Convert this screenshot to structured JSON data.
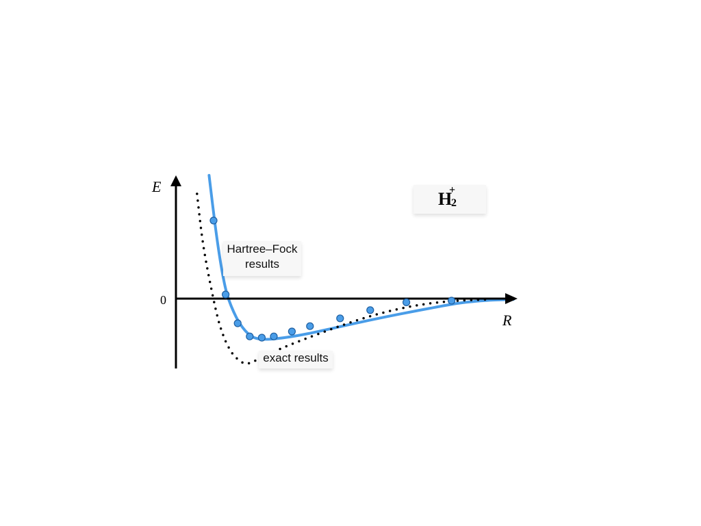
{
  "chart_data": {
    "type": "line",
    "xlabel": "R",
    "ylabel": "E",
    "zero_label": "0",
    "molecule": {
      "symbol": "H",
      "subscript": "2",
      "superscript": "+"
    },
    "grid": false,
    "series": [
      {
        "name": "Hartree–Fock results",
        "style": "solid-with-markers",
        "color": "#4a9de8",
        "curve": [
          [
            0.11,
            3.0
          ],
          [
            0.13,
            1.8
          ],
          [
            0.15,
            0.8
          ],
          [
            0.17,
            0.1
          ],
          [
            0.2,
            -0.45
          ],
          [
            0.23,
            -0.78
          ],
          [
            0.26,
            -0.95
          ],
          [
            0.3,
            -0.99
          ],
          [
            0.36,
            -0.95
          ],
          [
            0.44,
            -0.85
          ],
          [
            0.54,
            -0.69
          ],
          [
            0.64,
            -0.53
          ],
          [
            0.74,
            -0.38
          ],
          [
            0.84,
            -0.24
          ],
          [
            0.94,
            -0.11
          ],
          [
            1.04,
            -0.04
          ],
          [
            1.12,
            -0.02
          ]
        ],
        "points": [
          [
            0.125,
            1.9
          ],
          [
            0.165,
            0.1
          ],
          [
            0.205,
            -0.6
          ],
          [
            0.245,
            -0.92
          ],
          [
            0.285,
            -0.95
          ],
          [
            0.325,
            -0.92
          ],
          [
            0.385,
            -0.8
          ],
          [
            0.445,
            -0.67
          ],
          [
            0.545,
            -0.48
          ],
          [
            0.645,
            -0.28
          ],
          [
            0.765,
            -0.09
          ],
          [
            0.915,
            -0.05
          ]
        ]
      },
      {
        "name": "exact results",
        "style": "dotted",
        "color": "#000000",
        "curve": [
          [
            0.07,
            2.55
          ],
          [
            0.085,
            1.6
          ],
          [
            0.1,
            0.9
          ],
          [
            0.12,
            0.15
          ],
          [
            0.14,
            -0.5
          ],
          [
            0.16,
            -0.95
          ],
          [
            0.18,
            -1.25
          ],
          [
            0.2,
            -1.44
          ],
          [
            0.23,
            -1.58
          ],
          [
            0.26,
            -1.52
          ],
          [
            0.3,
            -1.38
          ],
          [
            0.36,
            -1.18
          ],
          [
            0.44,
            -0.95
          ],
          [
            0.54,
            -0.68
          ],
          [
            0.64,
            -0.44
          ],
          [
            0.74,
            -0.25
          ],
          [
            0.84,
            -0.12
          ],
          [
            0.94,
            -0.05
          ],
          [
            1.04,
            -0.02
          ]
        ]
      }
    ],
    "labels": {
      "hf": [
        "Hartree–Fock",
        "results"
      ],
      "exact": "exact results"
    },
    "colors": {
      "hf_line": "#4a9de8",
      "hf_marker_fill": "#4a9de8",
      "hf_marker_stroke": "#1f5fa0"
    }
  }
}
